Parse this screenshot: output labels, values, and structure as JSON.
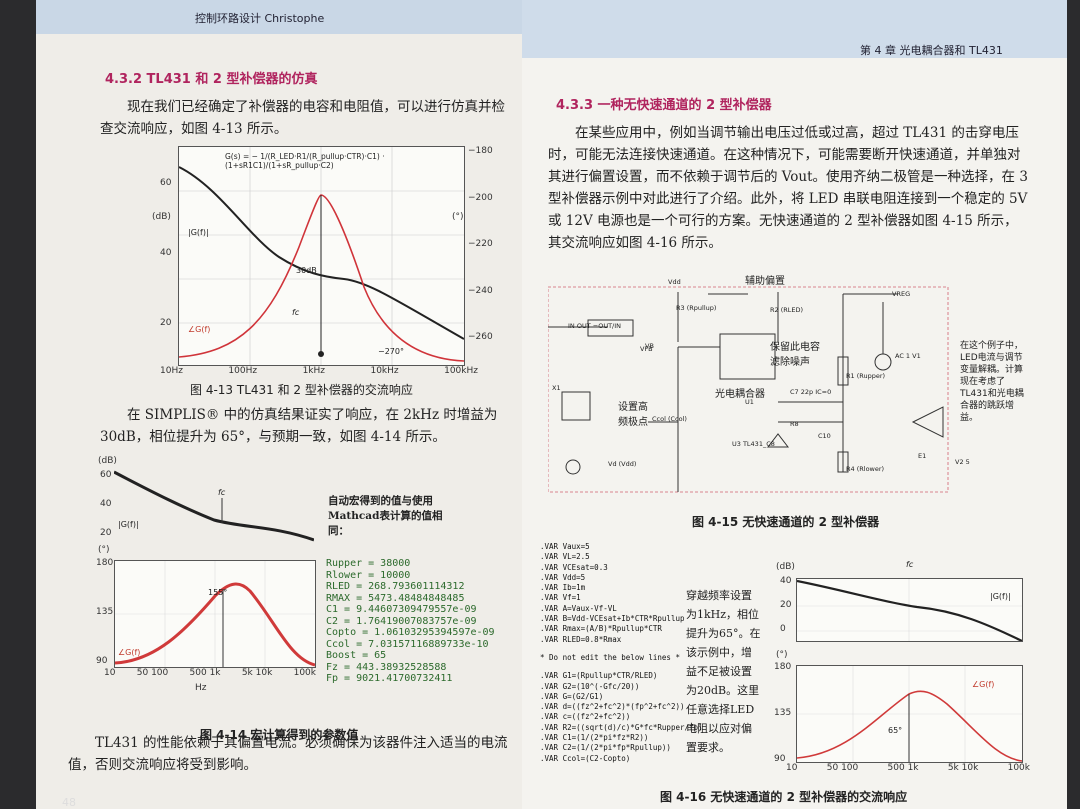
{
  "left_page": {
    "header": "控制环路设计 Christophe",
    "section_title": "4.3.2  TL431 和 2 型补偿器的仿真",
    "paragraph_1": "现在我们已经确定了补偿器的电容和电阻值，可以进行仿真并检查交流响应，如图 4-13 所示。",
    "figure_4_13": {
      "formula": "G(s) = − 1/(R_LED·R1/(R_pullup·CTR)·C1) · (1+sR1C1)/(1+sR_pullup·C2)",
      "left_unit": "(dB)",
      "left_ticks": [
        "60",
        "40",
        "20"
      ],
      "right_unit": "(°)",
      "right_ticks": [
        "−180",
        "−200",
        "−220",
        "−240",
        "−260"
      ],
      "x_ticks": [
        "10Hz",
        "100Hz",
        "1kHz",
        "10kHz",
        "100kHz"
      ],
      "magnitude_label": "|G(f)|",
      "phase_label": "∠G(f)",
      "gain_label": "30dB",
      "fc_label": "fc",
      "phase_min_label": "−270°",
      "caption": "图 4-13   TL431 和 2 型补偿器的交流响应"
    },
    "paragraph_2": "在 SIMPLIS® 中的仿真结果证实了响应，在 2kHz 时增益为 30dB，相位提升为 65°，与预期一致，如图 4-14 所示。",
    "figure_4_14": {
      "db_unit": "(dB)",
      "db_ticks": [
        "60",
        "40",
        "20"
      ],
      "deg_unit": "(°)",
      "deg_ticks": [
        "180",
        "135",
        "90"
      ],
      "x_ticks": [
        "10",
        "50 100",
        "500 1k",
        "5k 10k",
        "100k"
      ],
      "x_unit": "Hz",
      "magnitude_label": "|G(f)|",
      "phase_label": "∠G(f)",
      "fc_label": "fc",
      "peak_label": "155°",
      "note": "自动宏得到的值与使用Mathcad表计算的值相同：",
      "params": [
        "Rupper = 38000",
        "Rlower = 10000",
        "RLED = 268.793601114312",
        "RMAX = 5473.48484848485",
        "C1 = 9.44607309479557e-09",
        "C2 = 1.76419007083757e-09",
        "Copto = 1.06103295394597e-09",
        "Ccol = 7.03157116889733e-10",
        "Boost = 65",
        "Fz = 443.38932528588",
        "Fp = 9021.41700732411"
      ],
      "caption": "图 4-14   宏计算得到的参数值"
    },
    "paragraph_3": "TL431 的性能依赖于其偏置电流。必须确保为该器件注入适当的电流值，否则交流响应将受到影响。",
    "page_number": "48"
  },
  "right_page": {
    "header": "第 4 章   光电耦合器和 TL431",
    "section_title": "4.3.3   一种无快速通道的 2 型补偿器",
    "paragraph": "在某些应用中，例如当调节输出电压过低或过高，超过 TL431 的击穿电压时，可能无法连接快速通道。在这种情况下，可能需要断开快速通道，并单独对其进行偏置设置，而不依赖于调节后的 Vout。使用齐纳二极管是一种选择，在 3 型补偿器示例中对此进行了介绍。此外，将 LED 串联电阻连接到一个稳定的 5V 或 12V 电源也是一个可行的方案。无快速通道的 2 型补偿器如图 4-15 所示，其交流响应如图 4-16 所示。",
    "figure_4_15": {
      "aux_bias": "辅助偏置",
      "keep_cap": "保留此电容滤除噪声",
      "optocoupler": "光电耦合器",
      "hf_pole": "设置高频极点",
      "side_note": "在这个例子中，LED电流与调节变量解耦。计算现在考虑了TL431和光电耦合器的跳跃增益。",
      "parts": [
        "Vdd",
        "R3 (Rpullup)",
        "R2 (RLED)",
        "VREG",
        "VB",
        "VFB",
        "IN OUT =OUT/IN",
        "X1",
        "Ccol (Ccol)",
        "U1",
        "C7 22p IC=0",
        "R8",
        "C10",
        "U3 TL431_C8",
        "R1 (Rupper)",
        "R4 (Rlower)",
        "AC 1 V1",
        "E1",
        "V2 5",
        "Vd (Vdd)"
      ],
      "caption": "图 4-15   无快速通道的 2 型补偿器"
    },
    "figure_4_16": {
      "code": [
        ".VAR Vaux=5",
        ".VAR VL=2.5",
        ".VAR VCEsat=0.3",
        ".VAR Vdd=5",
        ".VAR Ib=1m",
        ".VAR Vf=1",
        ".VAR A=Vaux-Vf-VL",
        ".VAR B=Vdd-VCEsat+Ib*CTR*Rpullup",
        ".VAR Rmax=(A/B)*Rpullup*CTR",
        ".VAR RLED=0.8*Rmax",
        "* Do not edit the below lines *",
        ".VAR G1=(Rpullup*CTR/RLED)",
        ".VAR G2=(10^(-Gfc/20))",
        ".VAR G=(G2/G1)",
        ".VAR d=((fz^2+fc^2)*(fp^2+fc^2))",
        ".VAR c=((fz^2+fc^2))",
        ".VAR R2=((sqrt(d)/c)*G*fc*Rupper/fp)",
        ".VAR C1=(1/(2*pi*fz*R2))",
        ".VAR C2=(1/(2*pi*fp*Rpullup))",
        ".VAR Ccol=(C2-Copto)"
      ],
      "note": "穿越频率设置为1kHz，相位提升为65°。在该示例中，增益不足被设置为20dB。这里任意选择LED电阻以应对偏置要求。",
      "db_unit": "(dB)",
      "db_ticks": [
        "40",
        "20",
        "0"
      ],
      "deg_unit": "(°)",
      "deg_ticks": [
        "180",
        "135",
        "90"
      ],
      "x_ticks": [
        "10",
        "50 100",
        "500 1k",
        "5k 10k",
        "100k"
      ],
      "magnitude_label": "|G(f)|",
      "phase_label": "∠G(f)",
      "fc_label": "fc",
      "peak_label": "65°",
      "caption": "图 4-16   无快速通道的 2 型补偿器的交流响应"
    }
  }
}
